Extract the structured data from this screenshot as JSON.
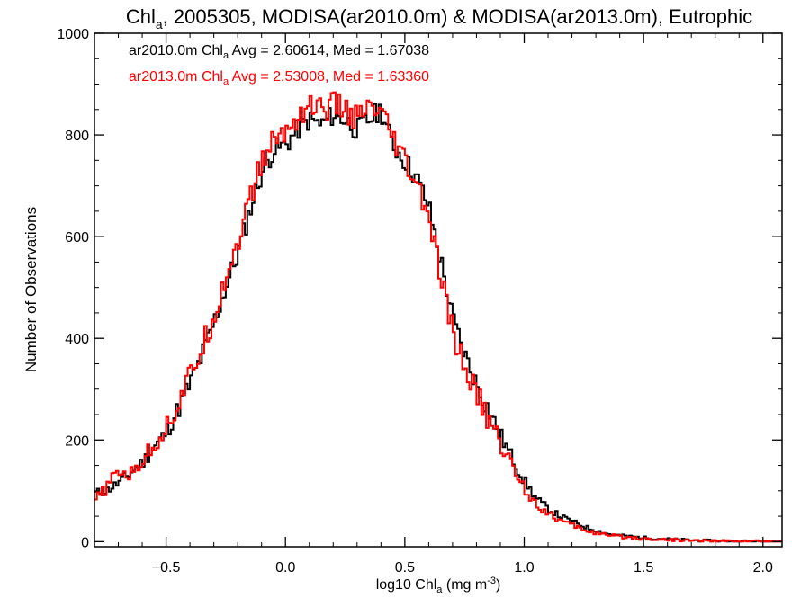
{
  "chart_data": {
    "type": "line",
    "title": {
      "prefix": "Chl",
      "sub": "a",
      "suffix": ", 2005305, MODISA(ar2010.0m) & MODISA(ar2013.0m), Eutrophic"
    },
    "xlabel": {
      "prefix": "log10 Chl",
      "sub": "a",
      "middle": " (mg m",
      "sup": "-3",
      "suffix": ")"
    },
    "ylabel": "Number of Observations",
    "xlim": [
      -0.8,
      2.08
    ],
    "ylim": [
      -10,
      1000
    ],
    "x_ticks": [
      -0.5,
      0.0,
      0.5,
      1.0,
      1.5,
      2.0
    ],
    "x_tick_labels": [
      "−0.5",
      "0.0",
      "0.5",
      "1.0",
      "1.5",
      "2.0"
    ],
    "y_ticks": [
      0,
      200,
      400,
      600,
      800,
      1000
    ],
    "y_tick_labels": [
      "0",
      "200",
      "400",
      "600",
      "800",
      "1000"
    ],
    "x_minor_step": 0.1,
    "y_minor_step": 50,
    "grid": false,
    "legend_position": "top-left",
    "series": [
      {
        "label_prefix": "ar2010.0m Chl",
        "label_sub": "a",
        "label_suffix": " Avg = 2.60614, Med = 1.67038",
        "color": "#000000",
        "x": [
          -0.8,
          -0.75,
          -0.7,
          -0.65,
          -0.6,
          -0.55,
          -0.5,
          -0.45,
          -0.4,
          -0.35,
          -0.3,
          -0.25,
          -0.2,
          -0.15,
          -0.1,
          -0.05,
          0.0,
          0.05,
          0.1,
          0.15,
          0.2,
          0.25,
          0.3,
          0.35,
          0.4,
          0.45,
          0.5,
          0.55,
          0.6,
          0.65,
          0.7,
          0.75,
          0.8,
          0.85,
          0.9,
          0.95,
          1.0,
          1.05,
          1.1,
          1.15,
          1.2,
          1.25,
          1.3,
          1.35,
          1.4,
          1.45,
          1.5,
          1.55,
          1.6,
          1.65,
          1.7,
          1.75,
          1.8,
          1.85,
          1.9,
          1.95,
          2.0,
          2.05,
          2.08
        ],
        "y": [
          95,
          100,
          115,
          135,
          155,
          185,
          215,
          260,
          310,
          365,
          430,
          500,
          565,
          650,
          725,
          770,
          780,
          810,
          830,
          820,
          840,
          830,
          810,
          830,
          850,
          780,
          750,
          715,
          660,
          555,
          440,
          370,
          310,
          260,
          210,
          165,
          120,
          85,
          65,
          50,
          40,
          30,
          22,
          15,
          12,
          10,
          8,
          6,
          5,
          4,
          3,
          2,
          2,
          1,
          1,
          1,
          0,
          0,
          0
        ],
        "noise": 22
      },
      {
        "label_prefix": "ar2013.0m Chl",
        "label_sub": "a",
        "label_suffix": " Avg = 2.53008, Med = 1.63360",
        "color": "#ff0000",
        "x": [
          -0.8,
          -0.75,
          -0.7,
          -0.65,
          -0.6,
          -0.55,
          -0.5,
          -0.45,
          -0.4,
          -0.35,
          -0.3,
          -0.25,
          -0.2,
          -0.15,
          -0.1,
          -0.05,
          0.0,
          0.05,
          0.1,
          0.15,
          0.2,
          0.25,
          0.3,
          0.35,
          0.4,
          0.45,
          0.5,
          0.55,
          0.6,
          0.65,
          0.7,
          0.75,
          0.8,
          0.85,
          0.9,
          0.95,
          1.0,
          1.05,
          1.1,
          1.15,
          1.2,
          1.25,
          1.3,
          1.35,
          1.4,
          1.45,
          1.5,
          1.55,
          1.6,
          1.65,
          1.7,
          1.75,
          1.8,
          1.85,
          1.9,
          1.95,
          2.0,
          2.05,
          2.08
        ],
        "y": [
          80,
          105,
          140,
          130,
          160,
          190,
          225,
          270,
          325,
          380,
          445,
          520,
          590,
          670,
          745,
          790,
          805,
          835,
          860,
          850,
          860,
          850,
          830,
          850,
          840,
          790,
          745,
          700,
          640,
          520,
          410,
          345,
          290,
          240,
          195,
          150,
          105,
          75,
          55,
          42,
          32,
          24,
          17,
          12,
          10,
          8,
          6,
          5,
          4,
          3,
          2,
          2,
          1,
          1,
          1,
          1,
          0,
          0,
          0
        ],
        "noise": 26
      }
    ]
  }
}
